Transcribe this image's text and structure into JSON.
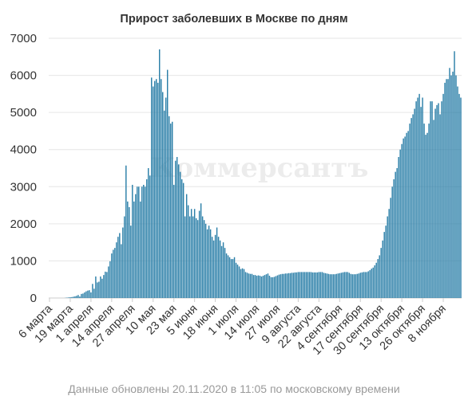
{
  "title": "Прирост заболевших в Москве по дням",
  "watermark": "Коммерсантъ",
  "footer": "Данные обновлены 20.11.2020 в 11:05 по московскому времени",
  "colors": {
    "bar": "#2b7fa8",
    "grid": "#e6e6e6",
    "axis": "#cccccc",
    "text": "#333333"
  },
  "chart_data": {
    "type": "bar",
    "title": "Прирост заболевших в Москве по дням",
    "xlabel": "",
    "ylabel": "",
    "ylim": [
      0,
      7000
    ],
    "yticks": [
      0,
      1000,
      2000,
      3000,
      4000,
      5000,
      6000,
      7000
    ],
    "grid": true,
    "legend": "none",
    "date_range": [
      "2020-03-06",
      "2020-11-19"
    ],
    "tick_labels": [
      "6 марта",
      "19 марта",
      "1 апреля",
      "14 апреля",
      "27 апреля",
      "10 мая",
      "23 мая",
      "5 июня",
      "18 июня",
      "1 июля",
      "14 июля",
      "27 июля",
      "9 августа",
      "22 августа",
      "4 сентября",
      "17 сентября",
      "30 сентября",
      "13 октября",
      "26 октября",
      "8 ноября"
    ],
    "series": [
      {
        "values": [
          0,
          0,
          0,
          0,
          0,
          0,
          0,
          0,
          0,
          0,
          5,
          10,
          15,
          20,
          25,
          35,
          45,
          60,
          80,
          40,
          110,
          120,
          150,
          180,
          200,
          210,
          150,
          380,
          250,
          580,
          420,
          440,
          580,
          520,
          620,
          710,
          700,
          850,
          990,
          1200,
          1300,
          1350,
          1500,
          1650,
          1750,
          1450,
          1900,
          2200,
          3570,
          2600,
          2450,
          1950,
          3050,
          2600,
          2800,
          3000,
          3000,
          2600,
          3000,
          3050,
          3000,
          3200,
          3500,
          3300,
          5940,
          5700,
          5850,
          5900,
          5800,
          6700,
          5900,
          5550,
          5050,
          5400,
          6150,
          4900,
          4700,
          4750,
          3050,
          3700,
          3800,
          3600,
          3400,
          3200,
          3100,
          2200,
          2800,
          2500,
          2200,
          2400,
          2200,
          2400,
          2150,
          2100,
          2350,
          2550,
          2200,
          2100,
          2000,
          1850,
          1950,
          1850,
          1650,
          1550,
          1700,
          1900,
          1650,
          1550,
          1400,
          1500,
          1350,
          1200,
          1150,
          1100,
          1050,
          1050,
          1100,
          950,
          900,
          850,
          780,
          800,
          780,
          700,
          680,
          660,
          650,
          650,
          620,
          620,
          600,
          610,
          600,
          580,
          600,
          620,
          640,
          660,
          600,
          560,
          560,
          570,
          590,
          610,
          630,
          640,
          650,
          650,
          660,
          660,
          670,
          670,
          680,
          680,
          690,
          690,
          700,
          700,
          700,
          700,
          700,
          700,
          700,
          700,
          700,
          690,
          690,
          690,
          690,
          700,
          700,
          700,
          680,
          670,
          660,
          650,
          640,
          640,
          640,
          640,
          650,
          660,
          670,
          680,
          690,
          700,
          700,
          700,
          680,
          650,
          640,
          640,
          640,
          650,
          660,
          680,
          690,
          700,
          700,
          700,
          720,
          750,
          790,
          820,
          880,
          950,
          1050,
          1150,
          1350,
          1550,
          1780,
          1950,
          2200,
          2400,
          2700,
          3000,
          3200,
          3400,
          3500,
          3800,
          4000,
          4150,
          4300,
          4350,
          4450,
          4500,
          4700,
          4850,
          4950,
          5100,
          5300,
          5400,
          5500,
          5150,
          5400,
          4700,
          4400,
          4450,
          4700,
          5300,
          5300,
          4800,
          5100,
          5200,
          5250,
          4950,
          5300,
          5500,
          5800,
          5900,
          5900,
          6200,
          6000,
          6100,
          6650,
          6000,
          5700,
          5500,
          5400,
          6100,
          6300,
          6300,
          6400,
          6200,
          6000,
          4200,
          4800
        ]
      }
    ]
  }
}
